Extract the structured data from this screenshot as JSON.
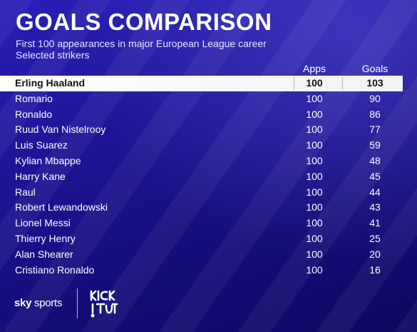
{
  "header": {
    "title": "GOALS COMPARISON",
    "subtitle": "First 100 appearances in major European League career",
    "subtitle2": "Selected strikers"
  },
  "columns": {
    "apps": "Apps",
    "goals": "Goals"
  },
  "rows": [
    {
      "name": "Erling Haaland",
      "apps": "100",
      "goals": "103"
    },
    {
      "name": "Romario",
      "apps": "100",
      "goals": "90"
    },
    {
      "name": "Ronaldo",
      "apps": "100",
      "goals": "86"
    },
    {
      "name": "Ruud Van Nistelrooy",
      "apps": "100",
      "goals": "77"
    },
    {
      "name": "Luis Suarez",
      "apps": "100",
      "goals": "59"
    },
    {
      "name": "Kylian Mbappe",
      "apps": "100",
      "goals": "48"
    },
    {
      "name": "Harry Kane",
      "apps": "100",
      "goals": "45"
    },
    {
      "name": "Raul",
      "apps": "100",
      "goals": "44"
    },
    {
      "name": "Robert Lewandowski",
      "apps": "100",
      "goals": "43"
    },
    {
      "name": "Lionel Messi",
      "apps": "100",
      "goals": "41"
    },
    {
      "name": "Thierry Henry",
      "apps": "100",
      "goals": "25"
    },
    {
      "name": "Alan Shearer",
      "apps": "100",
      "goals": "20"
    },
    {
      "name": "Cristiano Ronaldo",
      "apps": "100",
      "goals": "16"
    }
  ],
  "footer": {
    "sky": "sky",
    "sports": "sports",
    "kick_logo_text": "KICK IT OUT"
  },
  "colors": {
    "background": "#1d1596",
    "highlight_row": "#ffffff",
    "text": "#ffffff"
  }
}
